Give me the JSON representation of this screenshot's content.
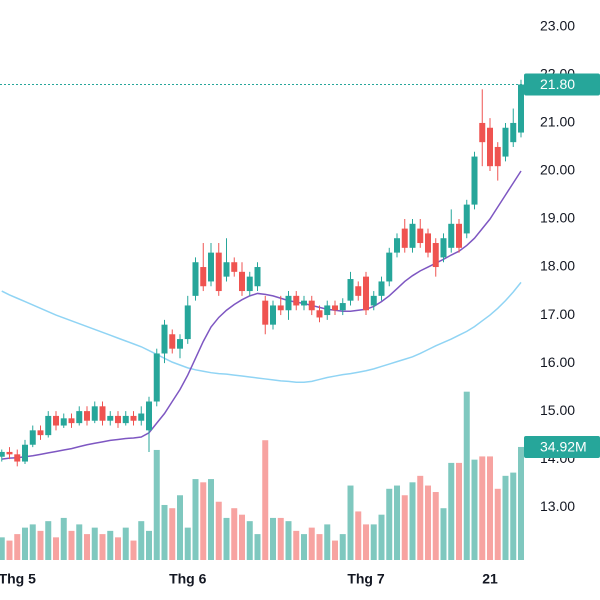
{
  "chart_data": {
    "type": "candlestick",
    "categories": [
      null,
      null,
      "Thg 5",
      null,
      null,
      null,
      null,
      null,
      null,
      null,
      null,
      null,
      null,
      null,
      null,
      null,
      null,
      null,
      null,
      null,
      null,
      null,
      null,
      null,
      "Thg 6",
      null,
      null,
      null,
      null,
      null,
      null,
      null,
      null,
      null,
      null,
      null,
      null,
      null,
      null,
      null,
      null,
      null,
      null,
      null,
      null,
      null,
      null,
      "Thg 7",
      null,
      null,
      null,
      null,
      null,
      null,
      null,
      null,
      null,
      null,
      null,
      null,
      null,
      null,
      null,
      "21",
      null,
      null,
      null,
      null
    ],
    "ohlc": [
      [
        14.05,
        14.2,
        13.95,
        14.15
      ],
      [
        14.15,
        14.25,
        14.0,
        14.1
      ],
      [
        14.1,
        14.2,
        13.85,
        13.95
      ],
      [
        13.95,
        14.4,
        13.9,
        14.3
      ],
      [
        14.3,
        14.7,
        14.25,
        14.6
      ],
      [
        14.6,
        14.7,
        14.4,
        14.5
      ],
      [
        14.5,
        15.0,
        14.45,
        14.9
      ],
      [
        14.9,
        15.0,
        14.6,
        14.7
      ],
      [
        14.7,
        14.95,
        14.65,
        14.85
      ],
      [
        14.85,
        14.95,
        14.65,
        14.75
      ],
      [
        14.75,
        15.1,
        14.7,
        15.0
      ],
      [
        15.0,
        15.1,
        14.7,
        14.8
      ],
      [
        14.8,
        15.2,
        14.75,
        15.1
      ],
      [
        15.1,
        15.2,
        14.7,
        14.8
      ],
      [
        14.8,
        15.0,
        14.7,
        14.9
      ],
      [
        14.9,
        15.0,
        14.65,
        14.75
      ],
      [
        14.75,
        15.0,
        14.7,
        14.9
      ],
      [
        14.9,
        15.0,
        14.7,
        14.8
      ],
      [
        14.8,
        15.1,
        14.7,
        14.95
      ],
      [
        14.6,
        15.3,
        14.15,
        15.2
      ],
      [
        15.2,
        16.3,
        15.1,
        16.2
      ],
      [
        16.2,
        16.9,
        16.0,
        16.8
      ],
      [
        16.6,
        16.7,
        16.2,
        16.3
      ],
      [
        16.3,
        16.6,
        16.1,
        16.5
      ],
      [
        16.5,
        17.4,
        16.4,
        17.2
      ],
      [
        17.4,
        18.2,
        17.3,
        18.1
      ],
      [
        18.0,
        18.5,
        17.5,
        17.6
      ],
      [
        17.7,
        18.5,
        17.6,
        18.3
      ],
      [
        18.3,
        18.5,
        17.4,
        17.5
      ],
      [
        17.8,
        18.6,
        17.7,
        18.1
      ],
      [
        18.1,
        18.2,
        17.8,
        17.9
      ],
      [
        17.9,
        18.1,
        17.4,
        17.5
      ],
      [
        17.5,
        17.9,
        17.4,
        17.8
      ],
      [
        17.6,
        18.1,
        17.5,
        18.0
      ],
      [
        17.3,
        17.4,
        16.6,
        16.8
      ],
      [
        16.8,
        17.3,
        16.7,
        17.2
      ],
      [
        17.2,
        17.4,
        17.0,
        17.1
      ],
      [
        17.1,
        17.5,
        16.9,
        17.4
      ],
      [
        17.4,
        17.5,
        17.1,
        17.2
      ],
      [
        17.2,
        17.4,
        17.1,
        17.3
      ],
      [
        17.3,
        17.4,
        17.0,
        17.1
      ],
      [
        17.1,
        17.2,
        16.85,
        16.95
      ],
      [
        17.0,
        17.3,
        16.9,
        17.2
      ],
      [
        17.2,
        17.3,
        17.0,
        17.1
      ],
      [
        17.1,
        17.35,
        17.0,
        17.25
      ],
      [
        17.3,
        17.9,
        17.2,
        17.75
      ],
      [
        17.6,
        17.7,
        17.3,
        17.4
      ],
      [
        17.8,
        17.9,
        17.0,
        17.1
      ],
      [
        17.2,
        17.5,
        17.1,
        17.4
      ],
      [
        17.4,
        17.8,
        17.3,
        17.7
      ],
      [
        17.7,
        18.4,
        17.6,
        18.3
      ],
      [
        18.3,
        18.7,
        18.2,
        18.6
      ],
      [
        18.8,
        19.0,
        18.3,
        18.4
      ],
      [
        18.4,
        19.0,
        18.3,
        18.9
      ],
      [
        18.8,
        19.0,
        18.4,
        18.5
      ],
      [
        18.7,
        18.8,
        18.2,
        18.3
      ],
      [
        18.5,
        18.6,
        17.8,
        18.0
      ],
      [
        18.2,
        18.7,
        18.1,
        18.6
      ],
      [
        18.4,
        19.2,
        18.3,
        18.9
      ],
      [
        18.9,
        19.0,
        18.3,
        18.4
      ],
      [
        18.7,
        19.4,
        18.6,
        19.3
      ],
      [
        19.3,
        20.4,
        19.2,
        20.3
      ],
      [
        21.0,
        21.7,
        20.1,
        20.6
      ],
      [
        20.9,
        21.1,
        20.0,
        20.1
      ],
      [
        20.5,
        20.6,
        19.8,
        20.1
      ],
      [
        20.3,
        21.0,
        20.2,
        20.9
      ],
      [
        20.6,
        21.3,
        20.5,
        21.0
      ],
      [
        20.8,
        21.9,
        20.7,
        21.8
      ]
    ],
    "ma20": [
      14.0,
      14.02,
      14.03,
      14.05,
      14.07,
      14.1,
      14.13,
      14.16,
      14.19,
      14.22,
      14.26,
      14.3,
      14.33,
      14.36,
      14.39,
      14.41,
      14.43,
      14.44,
      14.46,
      14.55,
      14.75,
      14.95,
      15.2,
      15.45,
      15.75,
      16.1,
      16.45,
      16.75,
      16.95,
      17.1,
      17.22,
      17.32,
      17.4,
      17.45,
      17.43,
      17.4,
      17.35,
      17.3,
      17.27,
      17.24,
      17.2,
      17.16,
      17.12,
      17.1,
      17.08,
      17.08,
      17.1,
      17.12,
      17.18,
      17.28,
      17.4,
      17.55,
      17.7,
      17.82,
      17.92,
      18.0,
      18.08,
      18.16,
      18.25,
      18.33,
      18.45,
      18.6,
      18.8,
      19.0,
      19.25,
      19.5,
      19.75,
      20.0
    ],
    "ma50": [
      17.5,
      17.42,
      17.35,
      17.28,
      17.21,
      17.14,
      17.07,
      17.0,
      16.94,
      16.88,
      16.82,
      16.76,
      16.7,
      16.64,
      16.58,
      16.52,
      16.46,
      16.4,
      16.34,
      16.26,
      16.18,
      16.1,
      16.02,
      15.96,
      15.9,
      15.86,
      15.83,
      15.8,
      15.78,
      15.77,
      15.75,
      15.73,
      15.71,
      15.69,
      15.67,
      15.65,
      15.63,
      15.62,
      15.6,
      15.6,
      15.62,
      15.66,
      15.7,
      15.73,
      15.76,
      15.78,
      15.81,
      15.84,
      15.88,
      15.93,
      15.98,
      16.03,
      16.08,
      16.13,
      16.2,
      16.28,
      16.36,
      16.43,
      16.5,
      16.58,
      16.66,
      16.76,
      16.88,
      17.0,
      17.14,
      17.3,
      17.48,
      17.68
    ],
    "volume": [
      7,
      6,
      8,
      10,
      11,
      9,
      12,
      7,
      13,
      9,
      11,
      8,
      10,
      8,
      9,
      7,
      10,
      6,
      12,
      9,
      34,
      17,
      16,
      20,
      10,
      25,
      24,
      25,
      18,
      13,
      16,
      14,
      12,
      8,
      37,
      13,
      13,
      12,
      9,
      8,
      10,
      8,
      11,
      6,
      8,
      23,
      15,
      11,
      11,
      14,
      22,
      23,
      20,
      24,
      26,
      23,
      21,
      16,
      30,
      30,
      52,
      31,
      32,
      32,
      22,
      26,
      27,
      34.92
    ],
    "vlim": [
      0,
      173
    ],
    "ylim": [
      11.9,
      23.56
    ],
    "yticks": [
      {
        "value": 23,
        "label": "23.00"
      },
      {
        "value": 22,
        "label": "22.00"
      },
      {
        "value": 21,
        "label": "21.00"
      },
      {
        "value": 20,
        "label": "20.00"
      },
      {
        "value": 19,
        "label": "19.00"
      },
      {
        "value": 18,
        "label": "18.00"
      },
      {
        "value": 17,
        "label": "17.00"
      },
      {
        "value": 16,
        "label": "16.00"
      },
      {
        "value": 15,
        "label": "15.00"
      },
      {
        "value": 14,
        "label": "14.00"
      },
      {
        "value": 13,
        "label": "13.00"
      }
    ],
    "last_price": {
      "value": 21.8,
      "label": "21.80"
    },
    "last_volume": {
      "value": 34.92,
      "label": "34.92M"
    },
    "up_color": "#26a69a",
    "down_color": "#ef5350",
    "up_volume_color": "#7fc8bf",
    "down_volume_color": "#f7a3a1",
    "ma20_color": "#7e57c2",
    "ma50_color": "#90d4f4"
  }
}
